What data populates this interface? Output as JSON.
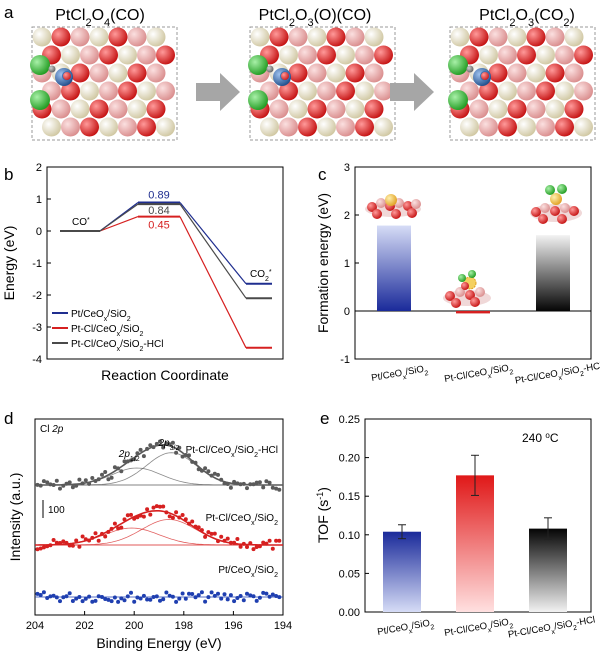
{
  "panels": {
    "a": {
      "letter": "a",
      "structures": [
        {
          "name": "PtCl",
          "sub1": "2",
          "name2": "O",
          "sub2": "4",
          "suffix": "(CO)"
        },
        {
          "name": "PtCl",
          "sub1": "2",
          "name2": "O",
          "sub2": "3",
          "suffix": "(O)(CO)"
        },
        {
          "name": "PtCl",
          "sub1": "2",
          "name2": "O",
          "sub2": "3",
          "suffix": "(CO",
          "sub3": "2",
          "suffix2": ")"
        }
      ]
    },
    "b": {
      "letter": "b"
    },
    "c": {
      "letter": "c"
    },
    "d": {
      "letter": "d"
    },
    "e": {
      "letter": "e"
    }
  },
  "colors": {
    "blue": "#1f2e8f",
    "red": "#d62020",
    "gray": "#4a4a4a",
    "o_red": "#d81e1e",
    "o_pink": "#e8a6a6",
    "ce_cream": "#ece7cc",
    "cl_green": "#3bbf3b",
    "pt_blue": "#3d6fb0"
  },
  "chart_data": [
    {
      "type": "line",
      "panel": "b",
      "xlabel": "Reaction Coordinate",
      "ylabel": "Energy (eV)",
      "ylim": [
        -4,
        2
      ],
      "yticks": [
        "2",
        "1",
        "0",
        "-1",
        "-2",
        "-3",
        "-4"
      ],
      "annotations": [
        {
          "text": "CO",
          "sup": "*"
        },
        {
          "text": "CO",
          "sub": "2",
          "sup": "*"
        }
      ],
      "series": [
        {
          "name": "Pt/CeOx/SiO2",
          "label_parts": [
            "Pt/CeO",
            "x",
            "/SiO",
            "2",
            ""
          ],
          "color": "#1f2e8f",
          "values": [
            0.0,
            0.89,
            -1.65
          ],
          "barrier_label": "0.89"
        },
        {
          "name": "Pt-Cl/CeOx/SiO2",
          "label_parts": [
            "Pt-Cl/CeO",
            "x",
            "/SiO",
            "2",
            ""
          ],
          "color": "#d62020",
          "values": [
            0.0,
            0.45,
            -3.65
          ],
          "barrier_label": "0.45"
        },
        {
          "name": "Pt-Cl/CeOx/SiO2-HCl",
          "label_parts": [
            "Pt-Cl/CeO",
            "x",
            "/SiO",
            "2",
            "-HCl"
          ],
          "color": "#4a4a4a",
          "values": [
            0.0,
            0.84,
            -2.1
          ],
          "barrier_label": "0.84"
        }
      ],
      "legend_position": "bottom-left"
    },
    {
      "type": "bar",
      "panel": "c",
      "ylabel": "Formation energy (eV)",
      "ylim": [
        -1,
        3
      ],
      "yticks": [
        "3",
        "2",
        "1",
        "0",
        "-1"
      ],
      "categories": [
        {
          "name": "Pt/CeOx/SiO2",
          "parts": [
            "Pt/CeO",
            "x",
            "/SiO",
            "2",
            ""
          ]
        },
        {
          "name": "Pt-Cl/CeOx/SiO2",
          "parts": [
            "Pt-Cl/CeO",
            "x",
            "/SiO",
            "2",
            ""
          ]
        },
        {
          "name": "Pt-Cl/CeOx/SiO2-HCl",
          "parts": [
            "Pt-Cl/CeO",
            "x",
            "/SiO",
            "2",
            "-HCl"
          ]
        }
      ],
      "values": [
        1.78,
        -0.05,
        1.58
      ],
      "bar_colors": [
        "#1f2e8f",
        "#d62020",
        "#111111"
      ]
    },
    {
      "type": "scatter",
      "panel": "d",
      "xlabel": "Binding Energy (eV)",
      "ylabel": "Intensity (a.u.)",
      "xlim": [
        204,
        194
      ],
      "xticks": [
        "204",
        "202",
        "200",
        "198",
        "196",
        "194"
      ],
      "corner_label": {
        "text": "Cl ",
        "italic": "2p"
      },
      "scale_bar_label": "100",
      "peak_labels": [
        {
          "text": "2p",
          "sub": "1/2",
          "x": 200.2
        },
        {
          "text": "2p",
          "sub": "3/2",
          "x": 198.6
        }
      ],
      "series": [
        {
          "name": "Pt-Cl/CeOx/SiO2-HCl",
          "label_parts": [
            "Pt-Cl/CeO",
            "x",
            "/SiO",
            "2",
            "-HCl"
          ],
          "color": "#5a5a5a",
          "peaks": [
            {
              "center": 199.9,
              "height": 1.0
            },
            {
              "center": 198.5,
              "height": 1.9
            }
          ],
          "width": 1.0
        },
        {
          "name": "Pt-Cl/CeOx/SiO2",
          "label_parts": [
            "Pt-Cl/CeO",
            "x",
            "/SiO",
            "2",
            ""
          ],
          "color": "#d62020",
          "peaks": [
            {
              "center": 200.1,
              "height": 1.0
            },
            {
              "center": 198.6,
              "height": 1.5
            }
          ],
          "width": 1.1
        },
        {
          "name": "Pt/CeOx/SiO2",
          "label_parts": [
            "Pt/CeO",
            "x",
            "/SiO",
            "2",
            ""
          ],
          "color": "#1f3fb0",
          "peaks": [],
          "width": 1.0
        }
      ]
    },
    {
      "type": "bar",
      "panel": "e",
      "ylabel": "TOF (s",
      "ylabel_sup": "-1",
      "ylabel_close": ")",
      "ylim": [
        0.0,
        0.25
      ],
      "yticks": [
        "0.25",
        "0.20",
        "0.15",
        "0.10",
        "0.05",
        "0.00"
      ],
      "annotation": {
        "text": "240 ",
        "sup": "o",
        "after": "C"
      },
      "categories": [
        {
          "name": "Pt/CeOx/SiO2",
          "parts": [
            "Pt/CeO",
            "x",
            "/SiO",
            "2",
            ""
          ]
        },
        {
          "name": "Pt-Cl/CeOx/SiO2",
          "parts": [
            "Pt-Cl/CeO",
            "x",
            "/SiO",
            "2",
            ""
          ]
        },
        {
          "name": "Pt-Cl/CeOx/SiO2-HCl",
          "parts": [
            "Pt-Cl/CeO",
            "x",
            "/SiO",
            "2",
            "-HCl"
          ]
        }
      ],
      "values": [
        0.104,
        0.177,
        0.108
      ],
      "errors": [
        0.009,
        0.026,
        0.014
      ],
      "bar_colors": [
        "#1f2e8f",
        "#e02020",
        "#111111"
      ]
    }
  ]
}
